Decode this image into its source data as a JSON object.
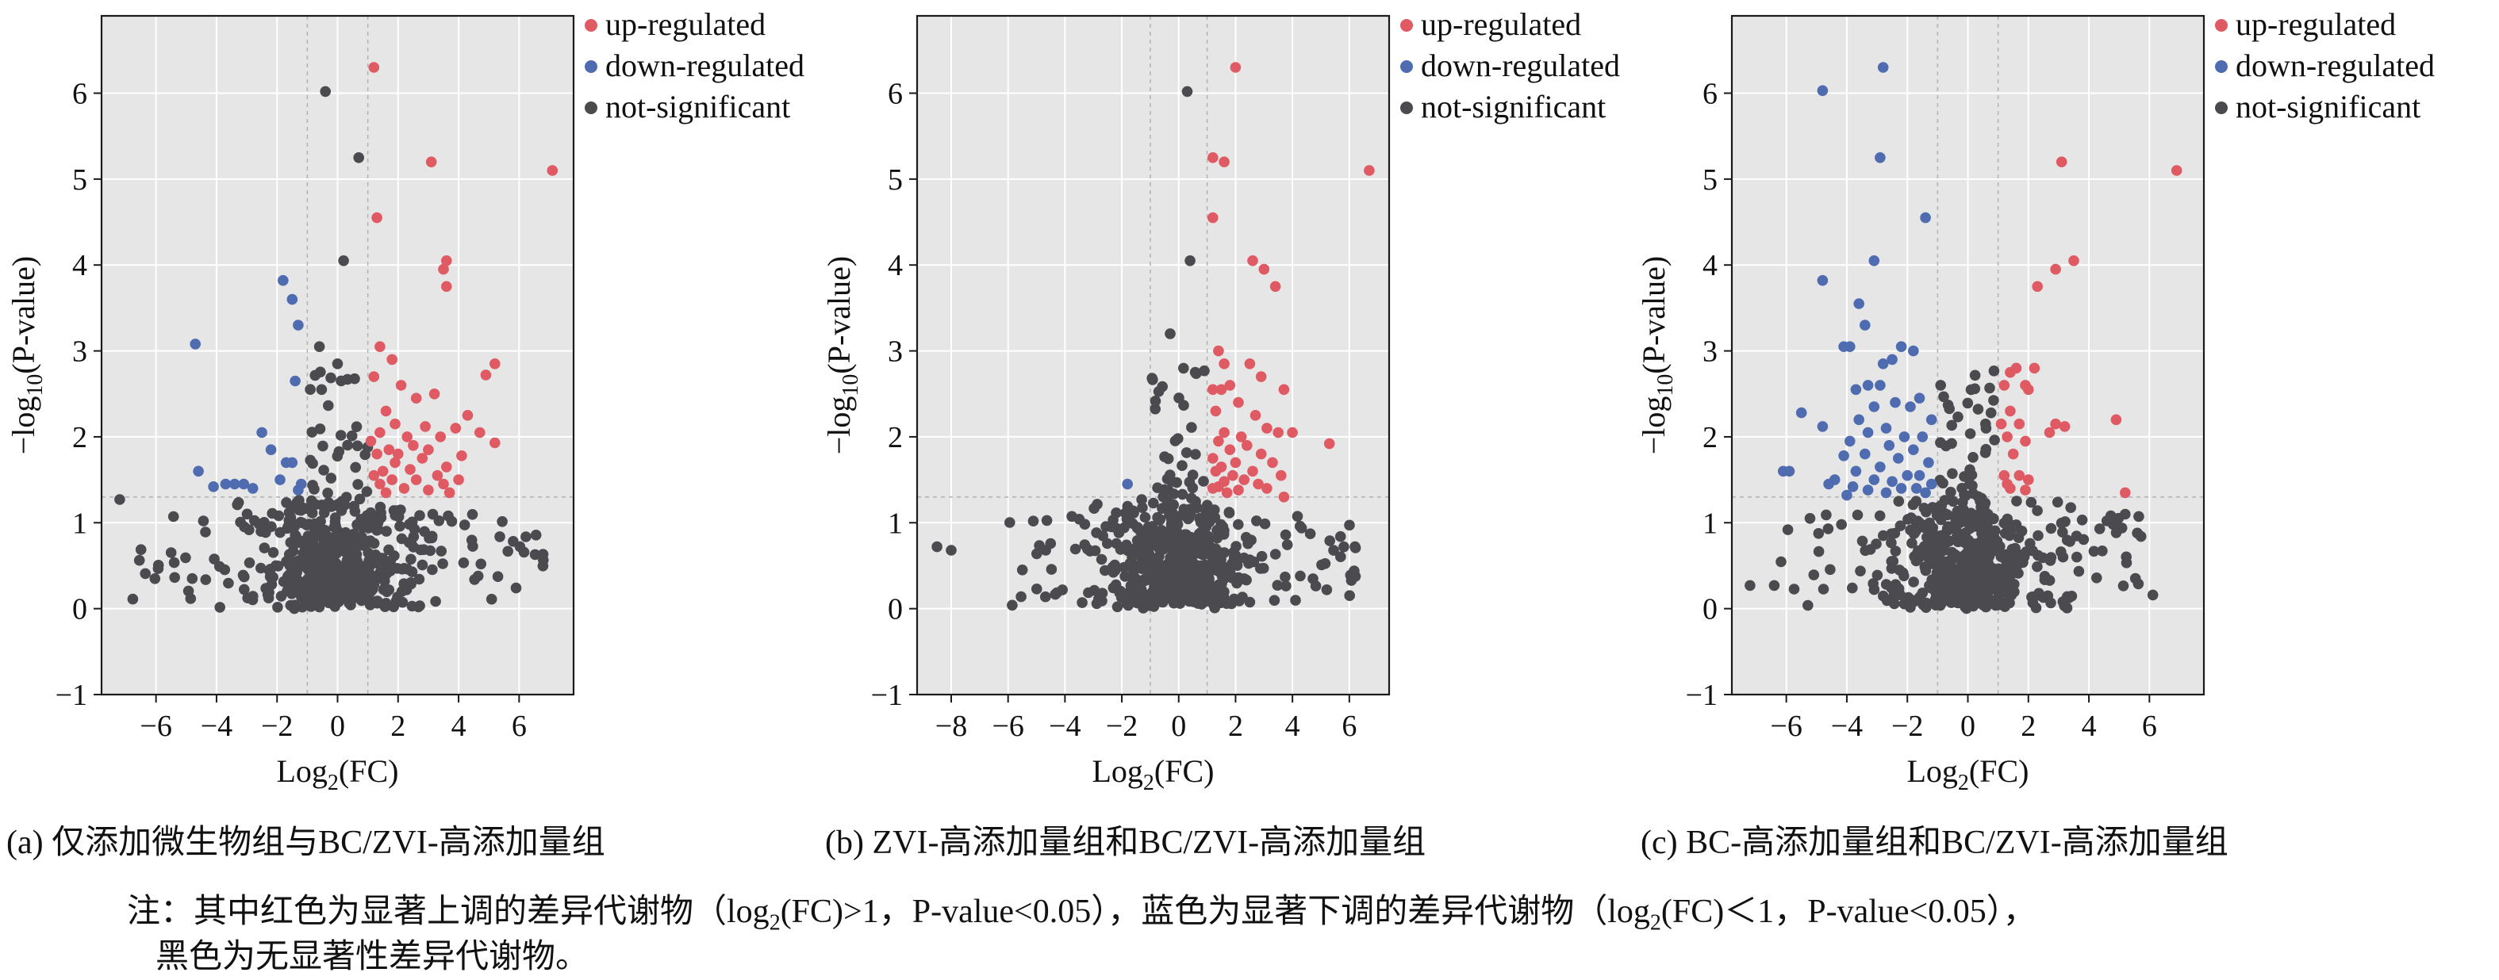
{
  "chart_data": [
    {
      "type": "scatter",
      "caption": "(a) 仅添加微生物组与BC/ZVI-高添加量组",
      "xlabel": "Log2(FC)",
      "ylabel": "−log10(P-value)",
      "xlim": [
        -7.8,
        7.8
      ],
      "ylim": [
        -1,
        6.9
      ],
      "xticks": [
        -6,
        -4,
        -2,
        0,
        2,
        4,
        6
      ],
      "yticks": [
        -1,
        0,
        1,
        2,
        3,
        4,
        5,
        6
      ],
      "grid": true,
      "legend_position": "outside-top-right",
      "thresholds": {
        "x": [
          -1,
          1
        ],
        "y": 1.3
      },
      "series": [
        {
          "name": "up-regulated",
          "color": "#E05A63",
          "points": [
            [
              1.2,
              6.3
            ],
            [
              3.1,
              5.2
            ],
            [
              7.1,
              5.1
            ],
            [
              1.3,
              4.55
            ],
            [
              3.6,
              4.05
            ],
            [
              3.5,
              3.95
            ],
            [
              3.6,
              3.75
            ],
            [
              1.4,
              3.05
            ],
            [
              1.8,
              2.9
            ],
            [
              5.2,
              2.85
            ],
            [
              4.9,
              2.72
            ],
            [
              1.2,
              2.7
            ],
            [
              2.1,
              2.6
            ],
            [
              3.2,
              2.5
            ],
            [
              2.6,
              2.45
            ],
            [
              1.6,
              2.3
            ],
            [
              4.3,
              2.25
            ],
            [
              1.9,
              2.15
            ],
            [
              2.9,
              2.12
            ],
            [
              3.9,
              2.1
            ],
            [
              1.4,
              2.05
            ],
            [
              2.3,
              2.0
            ],
            [
              3.4,
              2.0
            ],
            [
              1.1,
              1.95
            ],
            [
              2.5,
              1.9
            ],
            [
              4.7,
              2.05
            ],
            [
              5.2,
              1.93
            ],
            [
              1.7,
              1.85
            ],
            [
              3.0,
              1.85
            ],
            [
              2.0,
              1.8
            ],
            [
              1.3,
              1.8
            ],
            [
              4.1,
              1.78
            ],
            [
              2.8,
              1.75
            ],
            [
              1.9,
              1.7
            ],
            [
              3.6,
              1.65
            ],
            [
              1.5,
              1.6
            ],
            [
              2.4,
              1.62
            ],
            [
              3.3,
              1.55
            ],
            [
              1.2,
              1.55
            ],
            [
              1.8,
              1.5
            ],
            [
              2.6,
              1.5
            ],
            [
              4.0,
              1.5
            ],
            [
              3.5,
              1.45
            ],
            [
              1.4,
              1.45
            ],
            [
              2.2,
              1.4
            ],
            [
              3.0,
              1.38
            ],
            [
              1.6,
              1.35
            ],
            [
              3.7,
              1.35
            ]
          ]
        },
        {
          "name": "down-regulated",
          "color": "#4F6CB0",
          "points": [
            [
              -4.7,
              3.08
            ],
            [
              -1.8,
              3.82
            ],
            [
              -1.5,
              3.6
            ],
            [
              -1.3,
              3.3
            ],
            [
              -1.4,
              2.65
            ],
            [
              -2.5,
              2.05
            ],
            [
              -2.2,
              1.85
            ],
            [
              -4.6,
              1.6
            ],
            [
              -1.7,
              1.7
            ],
            [
              -1.5,
              1.7
            ],
            [
              -3.7,
              1.45
            ],
            [
              -3.4,
              1.45
            ],
            [
              -3.1,
              1.45
            ],
            [
              -2.8,
              1.4
            ],
            [
              -4.1,
              1.42
            ],
            [
              -1.2,
              1.45
            ],
            [
              -1.9,
              1.5
            ],
            [
              -1.3,
              1.38
            ]
          ]
        },
        {
          "name": "not-significant",
          "color": "#4A4A4F",
          "seed": 11,
          "named_points": [
            [
              -0.4,
              6.02
            ],
            [
              0.7,
              5.25
            ],
            [
              0.2,
              4.05
            ],
            [
              -7.2,
              1.27
            ],
            [
              -0.6,
              3.05
            ],
            [
              0.0,
              2.85
            ]
          ]
        }
      ]
    },
    {
      "type": "scatter",
      "caption": "(b) ZVI-高添加量组和BC/ZVI-高添加量组",
      "xlabel": "Log2(FC)",
      "ylabel": "−log10(P-value)",
      "xlim": [
        -9.2,
        7.4
      ],
      "ylim": [
        -1,
        6.9
      ],
      "xticks": [
        -8,
        -6,
        -4,
        -2,
        0,
        2,
        4,
        6
      ],
      "yticks": [
        -1,
        0,
        1,
        2,
        3,
        4,
        5,
        6
      ],
      "grid": true,
      "legend_position": "outside-top-right",
      "thresholds": {
        "x": [
          -1,
          1
        ],
        "y": 1.3
      },
      "series": [
        {
          "name": "up-regulated",
          "color": "#E05A63",
          "points": [
            [
              2.0,
              6.3
            ],
            [
              1.2,
              5.25
            ],
            [
              1.6,
              5.2
            ],
            [
              6.7,
              5.1
            ],
            [
              1.2,
              4.55
            ],
            [
              2.6,
              4.05
            ],
            [
              3.0,
              3.95
            ],
            [
              3.4,
              3.75
            ],
            [
              1.4,
              3.0
            ],
            [
              1.6,
              2.85
            ],
            [
              2.5,
              2.85
            ],
            [
              2.9,
              2.7
            ],
            [
              1.8,
              2.6
            ],
            [
              1.2,
              2.55
            ],
            [
              3.7,
              2.55
            ],
            [
              1.5,
              2.55
            ],
            [
              2.1,
              2.4
            ],
            [
              1.3,
              2.3
            ],
            [
              2.7,
              2.25
            ],
            [
              3.1,
              2.1
            ],
            [
              1.6,
              2.05
            ],
            [
              2.2,
              2.0
            ],
            [
              3.5,
              2.05
            ],
            [
              4.0,
              2.05
            ],
            [
              1.4,
              1.95
            ],
            [
              2.4,
              1.9
            ],
            [
              5.3,
              1.92
            ],
            [
              1.8,
              1.85
            ],
            [
              2.9,
              1.8
            ],
            [
              1.2,
              1.75
            ],
            [
              3.3,
              1.7
            ],
            [
              2.0,
              1.7
            ],
            [
              1.5,
              1.65
            ],
            [
              2.6,
              1.6
            ],
            [
              1.3,
              1.6
            ],
            [
              3.6,
              1.55
            ],
            [
              1.9,
              1.55
            ],
            [
              2.3,
              1.5
            ],
            [
              1.6,
              1.48
            ],
            [
              2.8,
              1.45
            ],
            [
              1.4,
              1.42
            ],
            [
              3.1,
              1.4
            ],
            [
              1.2,
              1.4
            ],
            [
              2.1,
              1.38
            ],
            [
              1.7,
              1.35
            ],
            [
              3.7,
              1.3
            ]
          ]
        },
        {
          "name": "down-regulated",
          "color": "#4F6CB0",
          "points": [
            [
              -1.8,
              1.45
            ]
          ]
        },
        {
          "name": "not-significant",
          "color": "#4A4A4F",
          "seed": 29,
          "named_points": [
            [
              0.3,
              6.02
            ],
            [
              0.4,
              4.05
            ],
            [
              -8.5,
              0.72
            ],
            [
              -8.0,
              0.68
            ],
            [
              6.2,
              0.72
            ],
            [
              -0.3,
              3.2
            ]
          ]
        }
      ]
    },
    {
      "type": "scatter",
      "caption": "(c) BC-高添加量组和BC/ZVI-高添加量组",
      "xlabel": "Log2(FC)",
      "ylabel": "−log10(P-value)",
      "xlim": [
        -7.8,
        7.8
      ],
      "ylim": [
        -1,
        6.9
      ],
      "xticks": [
        -6,
        -4,
        -2,
        0,
        2,
        4,
        6
      ],
      "yticks": [
        -1,
        0,
        1,
        2,
        3,
        4,
        5,
        6
      ],
      "grid": true,
      "legend_position": "outside-top-right",
      "thresholds": {
        "x": [
          -1,
          1
        ],
        "y": 1.3
      },
      "series": [
        {
          "name": "up-regulated",
          "color": "#E05A63",
          "points": [
            [
              3.1,
              5.2
            ],
            [
              6.9,
              5.1
            ],
            [
              3.5,
              4.05
            ],
            [
              2.9,
              3.95
            ],
            [
              2.3,
              3.75
            ],
            [
              1.6,
              2.8
            ],
            [
              2.2,
              2.8
            ],
            [
              1.4,
              2.75
            ],
            [
              1.9,
              2.6
            ],
            [
              1.2,
              2.6
            ],
            [
              2.0,
              2.55
            ],
            [
              1.4,
              2.3
            ],
            [
              1.1,
              2.15
            ],
            [
              1.7,
              2.15
            ],
            [
              2.9,
              2.15
            ],
            [
              3.2,
              2.12
            ],
            [
              2.7,
              2.05
            ],
            [
              4.9,
              2.2
            ],
            [
              1.3,
              2.0
            ],
            [
              1.9,
              1.95
            ],
            [
              1.5,
              1.8
            ],
            [
              1.2,
              1.55
            ],
            [
              1.7,
              1.55
            ],
            [
              1.3,
              1.45
            ],
            [
              2.0,
              1.5
            ],
            [
              1.4,
              1.4
            ],
            [
              1.9,
              1.38
            ],
            [
              5.2,
              1.35
            ]
          ]
        },
        {
          "name": "down-regulated",
          "color": "#4F6CB0",
          "points": [
            [
              -4.8,
              6.03
            ],
            [
              -2.8,
              6.3
            ],
            [
              -2.9,
              5.25
            ],
            [
              -1.4,
              4.55
            ],
            [
              -3.1,
              4.05
            ],
            [
              -4.8,
              3.82
            ],
            [
              -3.6,
              3.55
            ],
            [
              -3.4,
              3.3
            ],
            [
              -4.1,
              3.05
            ],
            [
              -3.9,
              3.05
            ],
            [
              -2.2,
              3.05
            ],
            [
              -1.8,
              3.0
            ],
            [
              -2.5,
              2.9
            ],
            [
              -2.8,
              2.85
            ],
            [
              -3.3,
              2.6
            ],
            [
              -2.9,
              2.6
            ],
            [
              -3.7,
              2.55
            ],
            [
              -1.6,
              2.45
            ],
            [
              -2.4,
              2.4
            ],
            [
              -3.1,
              2.35
            ],
            [
              -1.9,
              2.35
            ],
            [
              -5.5,
              2.28
            ],
            [
              -3.6,
              2.2
            ],
            [
              -1.2,
              2.2
            ],
            [
              -2.7,
              2.1
            ],
            [
              -4.8,
              2.12
            ],
            [
              -3.3,
              2.05
            ],
            [
              -2.1,
              2.0
            ],
            [
              -1.5,
              2.0
            ],
            [
              -3.9,
              1.95
            ],
            [
              -2.6,
              1.9
            ],
            [
              -1.8,
              1.85
            ],
            [
              -3.4,
              1.8
            ],
            [
              -4.1,
              1.78
            ],
            [
              -2.3,
              1.75
            ],
            [
              -1.3,
              1.7
            ],
            [
              -2.9,
              1.65
            ],
            [
              -6.1,
              1.6
            ],
            [
              -5.9,
              1.6
            ],
            [
              -3.7,
              1.6
            ],
            [
              -2.0,
              1.55
            ],
            [
              -1.6,
              1.55
            ],
            [
              -4.4,
              1.5
            ],
            [
              -3.1,
              1.5
            ],
            [
              -2.5,
              1.48
            ],
            [
              -1.2,
              1.45
            ],
            [
              -3.8,
              1.42
            ],
            [
              -2.2,
              1.4
            ],
            [
              -1.7,
              1.4
            ],
            [
              -4.6,
              1.45
            ],
            [
              -3.3,
              1.38
            ],
            [
              -2.7,
              1.35
            ],
            [
              -1.4,
              1.35
            ],
            [
              -4.0,
              1.32
            ]
          ]
        },
        {
          "name": "not-significant",
          "color": "#4A4A4F",
          "seed": 47,
          "named_points": [
            [
              -7.2,
              0.27
            ],
            [
              -6.4,
              0.27
            ],
            [
              4.8,
              1.05
            ],
            [
              5.2,
              1.1
            ],
            [
              5.6,
              0.88
            ],
            [
              -0.9,
              2.6
            ],
            [
              0.6,
              2.1
            ]
          ]
        }
      ]
    }
  ],
  "note_prefix": "注：其中红色为显著上调的差异代谢物（",
  "note_up_pre": "log",
  "note_up_sub": "2",
  "note_up_post": "(FC)>1，P-value<0.05），蓝色为显著下调的差异代谢物（",
  "note_down_pre": "log",
  "note_down_sub": "2",
  "note_down_post": "(FC)＜1，P-value<0.05），",
  "note_line2": "黑色为无显著性差异代谢物。"
}
